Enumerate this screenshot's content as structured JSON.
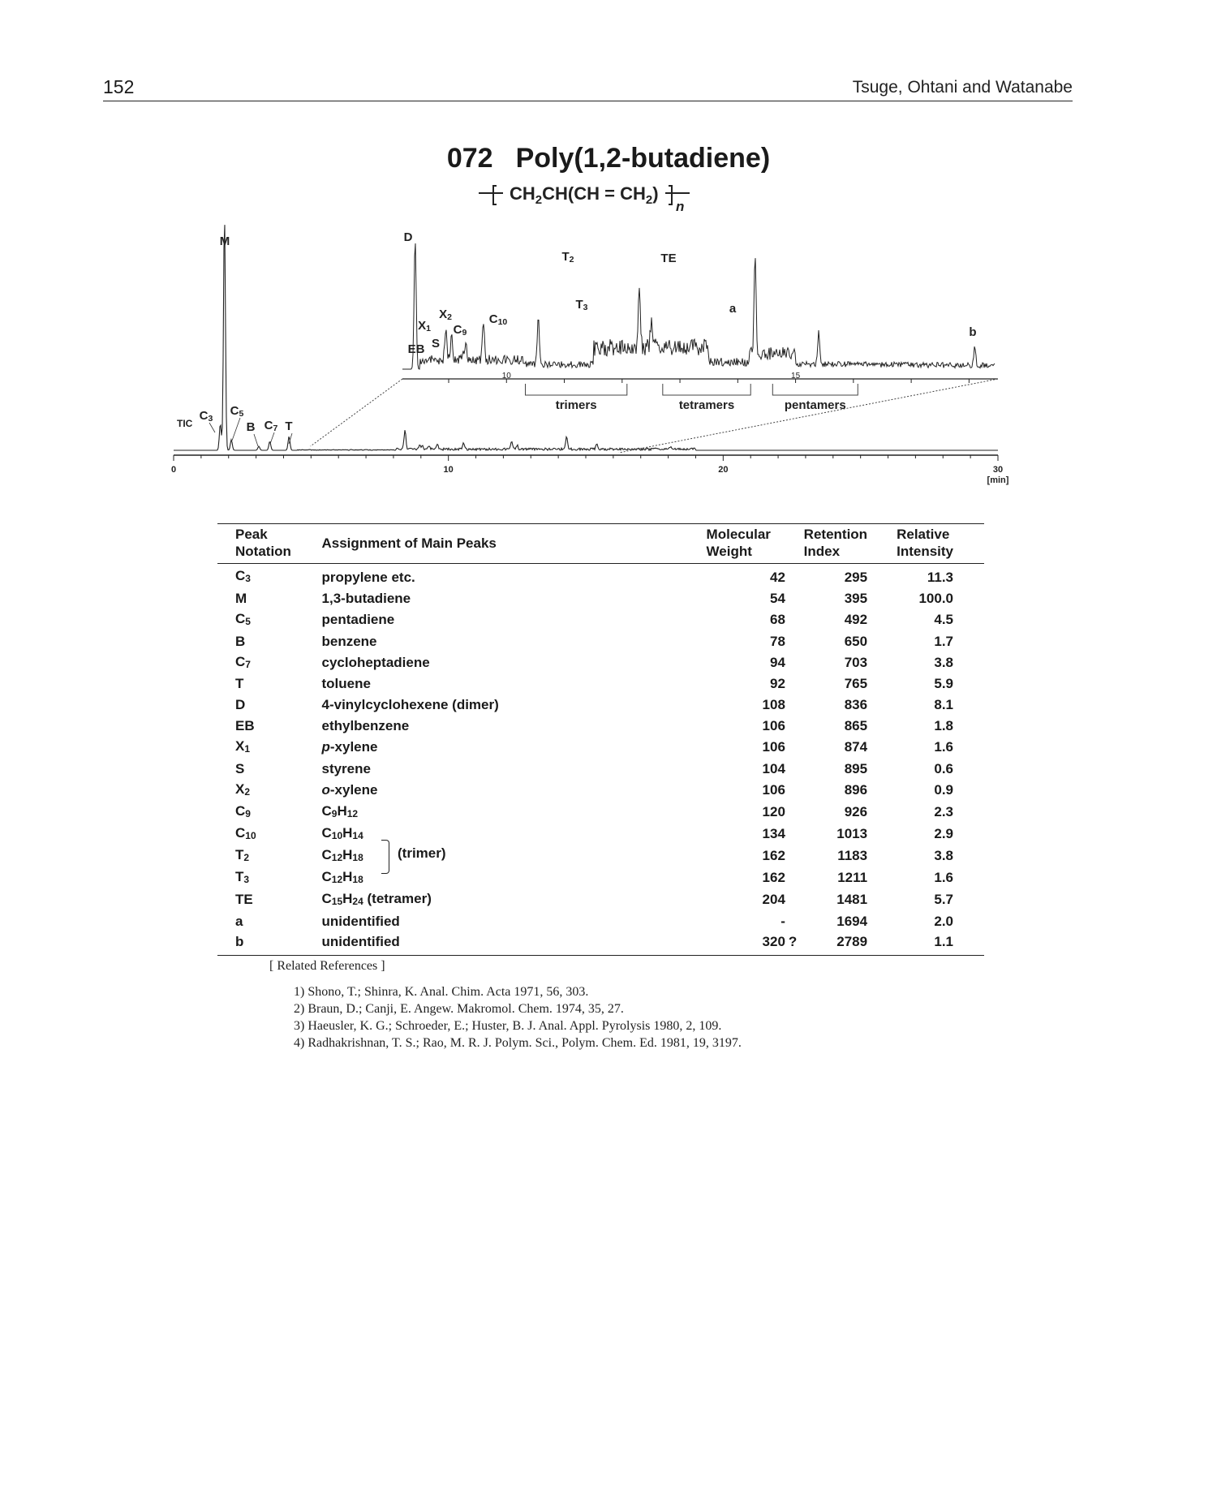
{
  "header": {
    "page_number": "152",
    "authors": "Tsuge, Ohtani and Watanabe"
  },
  "title": {
    "number": "072",
    "name": "Poly(1,2-butadiene)",
    "formula": "CH2CH(CH = CH2)",
    "repeat_label": "n"
  },
  "chart_data": {
    "type": "line",
    "title": "TIC",
    "xlabel": "[min]",
    "x_ticks": [
      "0",
      "10",
      "20",
      "30"
    ],
    "x_range": [
      0,
      30
    ],
    "inset_x_ticks": [
      "10",
      "15"
    ],
    "inset_x_range": [
      8.2,
      18.5
    ],
    "series": [
      {
        "name": "TIC",
        "peaks": [
          {
            "label": "C3",
            "x": 1.7,
            "y": 11.3
          },
          {
            "label": "M",
            "x": 1.85,
            "y": 100.0
          },
          {
            "label": "C5",
            "x": 2.1,
            "y": 4.5
          },
          {
            "label": "B",
            "x": 3.1,
            "y": 1.7
          },
          {
            "label": "C7",
            "x": 3.5,
            "y": 3.8
          },
          {
            "label": "T",
            "x": 4.2,
            "y": 5.9
          }
        ]
      },
      {
        "name": "inset",
        "peaks": [
          {
            "label": "D",
            "x": 8.42,
            "y": 8.1
          },
          {
            "label": "EB",
            "x": 8.95,
            "y": 1.8
          },
          {
            "label": "X1",
            "x": 9.05,
            "y": 1.6
          },
          {
            "label": "S",
            "x": 9.25,
            "y": 0.6
          },
          {
            "label": "X2",
            "x": 9.3,
            "y": 0.9
          },
          {
            "label": "C9",
            "x": 9.6,
            "y": 2.3
          },
          {
            "label": "C10",
            "x": 10.55,
            "y": 2.9
          },
          {
            "label": "T2",
            "x": 12.3,
            "y": 3.8
          },
          {
            "label": "T3",
            "x": 12.5,
            "y": 1.6
          },
          {
            "label": "TE",
            "x": 14.3,
            "y": 5.7
          },
          {
            "label": "a",
            "x": 15.4,
            "y": 2.0
          },
          {
            "label": "b",
            "x": 18.1,
            "y": 1.1
          }
        ]
      }
    ],
    "groups": [
      "trimers",
      "tetramers",
      "pentamers"
    ],
    "annotations": [
      "C3",
      "C5",
      "B",
      "C7",
      "T",
      "M",
      "D",
      "EB",
      "X1",
      "S",
      "X2",
      "C9",
      "C10",
      "T2",
      "T3",
      "TE",
      "a",
      "b"
    ]
  },
  "table": {
    "headers": {
      "notation": "Peak\nNotation",
      "assignment": "Assignment of Main Peaks",
      "mw": "Molecular\nWeight",
      "ri": "Retention\nIndex",
      "rel": "Relative\nIntensity"
    },
    "rows": [
      {
        "notation": "C3",
        "assignment": "propylene etc.",
        "mw": "42",
        "ri": "295",
        "rel": "11.3"
      },
      {
        "notation": "M",
        "assignment": "1,3-butadiene",
        "mw": "54",
        "ri": "395",
        "rel": "100.0"
      },
      {
        "notation": "C5",
        "assignment": "pentadiene",
        "mw": "68",
        "ri": "492",
        "rel": "4.5"
      },
      {
        "notation": "B",
        "assignment": "benzene",
        "mw": "78",
        "ri": "650",
        "rel": "1.7"
      },
      {
        "notation": "C7",
        "assignment": "cycloheptadiene",
        "mw": "94",
        "ri": "703",
        "rel": "3.8"
      },
      {
        "notation": "T",
        "assignment": "toluene",
        "mw": "92",
        "ri": "765",
        "rel": "5.9"
      },
      {
        "notation": "D",
        "assignment": "4-vinylcyclohexene  (dimer)",
        "mw": "108",
        "ri": "836",
        "rel": "8.1"
      },
      {
        "notation": "EB",
        "assignment": "ethylbenzene",
        "mw": "106",
        "ri": "865",
        "rel": "1.8"
      },
      {
        "notation": "X1",
        "assignment": "p-xylene",
        "mw": "106",
        "ri": "874",
        "rel": "1.6"
      },
      {
        "notation": "S",
        "assignment": "styrene",
        "mw": "104",
        "ri": "895",
        "rel": "0.6"
      },
      {
        "notation": "X2",
        "assignment": "o-xylene",
        "mw": "106",
        "ri": "896",
        "rel": "0.9"
      },
      {
        "notation": "C9",
        "assignment": "C9H12",
        "mw": "120",
        "ri": "926",
        "rel": "2.3"
      },
      {
        "notation": "C10",
        "assignment": "C10H14",
        "mw": "134",
        "ri": "1013",
        "rel": "2.9"
      },
      {
        "notation": "T2",
        "assignment": "C12H18",
        "mw": "162",
        "ri": "1183",
        "rel": "3.8"
      },
      {
        "notation": "T3",
        "assignment": "C12H18",
        "mw": "162",
        "ri": "1211",
        "rel": "1.6"
      },
      {
        "notation": "TE",
        "assignment": "C15H24  (tetramer)",
        "mw": "204",
        "ri": "1481",
        "rel": "5.7"
      },
      {
        "notation": "a",
        "assignment": "unidentified",
        "mw": "-",
        "ri": "1694",
        "rel": "2.0"
      },
      {
        "notation": "b",
        "assignment": "unidentified",
        "mw": "320",
        "mw_note": "?",
        "ri": "2789",
        "rel": "1.1"
      }
    ],
    "trimer_label": "(trimer)"
  },
  "references": {
    "heading": "[ Related References ]",
    "items": [
      "1) Shono, T.; Shinra, K. Anal. Chim. Acta 1971, 56, 303.",
      "2) Braun, D.; Canji, E. Angew. Makromol. Chem. 1974, 35, 27.",
      "3) Haeusler, K. G.; Schroeder, E.; Huster, B. J. Anal. Appl. Pyrolysis 1980, 2, 109.",
      "4) Radhakrishnan, T. S.; Rao, M. R. J. Polym. Sci., Polym. Chem. Ed. 1981, 19, 3197."
    ]
  }
}
